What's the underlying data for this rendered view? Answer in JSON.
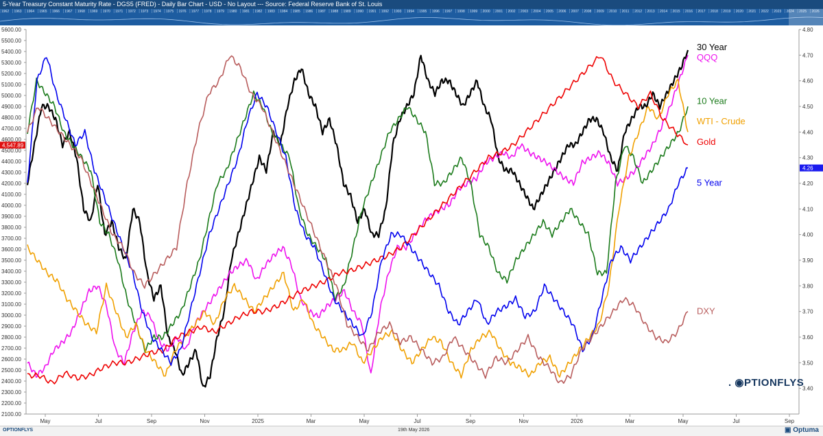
{
  "header": {
    "title": "5-Year Treasury Constant Maturity Rate - DGS5 (FRED) - Daily Bar Chart - USD - No Layout --- Source: Federal Reserve Bank of St. Louis"
  },
  "nav_years": [
    "1962",
    "1963",
    "1964",
    "1965",
    "1966",
    "1967",
    "1968",
    "1969",
    "1970",
    "1971",
    "1972",
    "1973",
    "1974",
    "1975",
    "1976",
    "1977",
    "1978",
    "1979",
    "1980",
    "1981",
    "1982",
    "1983",
    "1984",
    "1985",
    "1986",
    "1987",
    "1988",
    "1989",
    "1990",
    "1991",
    "1992",
    "1993",
    "1994",
    "1995",
    "1996",
    "1997",
    "1998",
    "1999",
    "2000",
    "2001",
    "2002",
    "2003",
    "2004",
    "2005",
    "2006",
    "2007",
    "2008",
    "2009",
    "2010",
    "2011",
    "2012",
    "2013",
    "2014",
    "2015",
    "2016",
    "2017",
    "2018",
    "2019",
    "2020",
    "2021",
    "2022",
    "2023",
    "2024",
    "2025",
    "2026"
  ],
  "footer": {
    "left_logo": "OPTIONFLYS",
    "date": "19th May 2026",
    "brand": "Optuma"
  },
  "watermark": "PTIONFLYS",
  "colors": {
    "thirty_year": "#000000",
    "qqq": "#ee11ee",
    "ten_year": "#1a7a1a",
    "wti": "#f0a000",
    "gold": "#ee0000",
    "five_year": "#0000ee",
    "dxy": "#b85c5c"
  },
  "chart_data": {
    "type": "line",
    "title": "5-Year Treasury Constant Maturity Rate - DGS5 (FRED) - Daily Bar Chart - USD",
    "left_axis": {
      "ylim": [
        2100,
        5600
      ],
      "ticks": [
        "5600.00",
        "5500.00",
        "5400.00",
        "5300.00",
        "5200.00",
        "5100.00",
        "5000.00",
        "4900.00",
        "4800.00",
        "4700.00",
        "4600.00",
        "4500.00",
        "4400.00",
        "4300.00",
        "4200.00",
        "4100.00",
        "4000.00",
        "3900.00",
        "3800.00",
        "3700.00",
        "3600.00",
        "3500.00",
        "3400.00",
        "3300.00",
        "3200.00",
        "3100.00",
        "3000.00",
        "2900.00",
        "2800.00",
        "2700.00",
        "2600.00",
        "2500.00",
        "2400.00",
        "2300.00",
        "2200.00",
        "2100.00"
      ],
      "marker": "4,547.89"
    },
    "right_axis": {
      "ylim": [
        3.3,
        4.8
      ],
      "ticks": [
        "4.80",
        "4.70",
        "4.60",
        "4.50",
        "4.40",
        "4.30",
        "4.20",
        "4.10",
        "4.00",
        "3.90",
        "3.80",
        "3.70",
        "3.60",
        "3.50",
        "3.40"
      ],
      "marker": "4.26"
    },
    "x_axis": {
      "ticks": [
        "May",
        "Jul",
        "Sep",
        "Nov",
        "2025",
        "Mar",
        "May",
        "Jul",
        "Sep",
        "Nov",
        "2026",
        "Mar",
        "May",
        "Jul",
        "Sep"
      ]
    },
    "grid": false,
    "legend_position": "right",
    "series": [
      {
        "name": "30 Year",
        "color_key": "thirty_year",
        "values": [
          4.2,
          4.35,
          4.5,
          4.5,
          4.45,
          4.35,
          4.4,
          4.3,
          4.1,
          4.05,
          4.2,
          4.0,
          4.05,
          3.95,
          3.9,
          4.1,
          4.05,
          3.85,
          3.75,
          3.8,
          3.6,
          3.55,
          3.45,
          3.5,
          3.55,
          3.4,
          3.45,
          3.6,
          3.7,
          3.9,
          4.0,
          4.1,
          4.2,
          4.3,
          4.25,
          4.4,
          4.35,
          4.5,
          4.6,
          4.65,
          4.55,
          4.5,
          4.4,
          4.45,
          4.35,
          4.2,
          4.15,
          4.05,
          4.1,
          4.0,
          4.0,
          4.1,
          4.35,
          4.45,
          4.5,
          4.55,
          4.7,
          4.6,
          4.55,
          4.6,
          4.6,
          4.55,
          4.5,
          4.55,
          4.6,
          4.5,
          4.45,
          4.3,
          4.25,
          4.25,
          4.2,
          4.15,
          4.1,
          4.15,
          4.2,
          4.25,
          4.3,
          4.35,
          4.35,
          4.4,
          4.45,
          4.45,
          4.4,
          4.3,
          4.25,
          4.4,
          4.45,
          4.5,
          4.5,
          4.55,
          4.5,
          4.55,
          4.6,
          4.65,
          4.72
        ]
      },
      {
        "name": "QQQ",
        "color_key": "qqq",
        "values": [
          3.5,
          3.45,
          3.48,
          3.55,
          3.58,
          3.62,
          3.7,
          3.78,
          3.8,
          3.72,
          3.55,
          3.5,
          3.62,
          3.7,
          3.68,
          3.58,
          3.55,
          3.6,
          3.55,
          3.65,
          3.7,
          3.75,
          3.8,
          3.85,
          3.88,
          3.9,
          3.82,
          3.88,
          3.92,
          3.95,
          3.88,
          3.75,
          3.7,
          3.68,
          3.72,
          3.75,
          3.78,
          3.7,
          3.65,
          3.45,
          3.7,
          3.85,
          3.95,
          3.95,
          4.0,
          4.05,
          4.08,
          4.1,
          4.12,
          4.18,
          4.2,
          4.22,
          4.28,
          4.3,
          4.32,
          4.3,
          4.35,
          4.32,
          4.3,
          4.28,
          4.25,
          4.22,
          4.2,
          4.28,
          4.3,
          4.32,
          4.28,
          4.2,
          4.22,
          4.25,
          4.3,
          4.35,
          4.42,
          4.5,
          4.6,
          4.7
        ]
      },
      {
        "name": "10 Year",
        "color_key": "ten_year",
        "values": [
          4.4,
          4.6,
          4.55,
          4.5,
          4.4,
          4.35,
          4.3,
          4.25,
          4.05,
          4.0,
          3.9,
          3.75,
          3.65,
          3.55,
          3.6,
          3.6,
          3.65,
          3.7,
          3.8,
          3.9,
          4.05,
          4.2,
          4.25,
          4.35,
          4.45,
          4.55,
          4.5,
          4.4,
          4.35,
          4.3,
          4.1,
          4.0,
          3.95,
          3.9,
          3.75,
          3.8,
          3.95,
          4.1,
          4.2,
          4.3,
          4.4,
          4.45,
          4.5,
          4.45,
          4.4,
          4.2,
          4.2,
          4.25,
          4.3,
          4.2,
          4.0,
          3.95,
          3.85,
          3.82,
          3.9,
          3.95,
          4.0,
          4.05,
          4.0,
          4.05,
          4.1,
          4.05,
          4.0,
          3.85,
          3.85,
          4.2,
          4.35,
          4.3,
          4.2,
          4.25,
          4.3,
          4.35,
          4.4,
          4.5
        ]
      },
      {
        "name": "WTI - Crude",
        "color_key": "wti",
        "values": [
          3.95,
          3.9,
          3.85,
          3.82,
          3.75,
          3.7,
          3.65,
          3.62,
          3.8,
          3.7,
          3.6,
          3.65,
          3.55,
          3.5,
          3.45,
          3.55,
          3.6,
          3.65,
          3.7,
          3.65,
          3.75,
          3.8,
          3.75,
          3.7,
          3.75,
          3.8,
          3.85,
          3.7,
          3.75,
          3.65,
          3.6,
          3.55,
          3.55,
          3.58,
          3.5,
          3.55,
          3.6,
          3.62,
          3.55,
          3.5,
          3.55,
          3.6,
          3.58,
          3.5,
          3.45,
          3.55,
          3.6,
          3.62,
          3.55,
          3.5,
          3.48,
          3.45,
          3.5,
          3.52,
          3.45,
          3.5,
          3.55,
          3.6,
          3.65,
          3.8,
          4.1,
          4.3,
          4.4,
          4.5,
          4.45,
          4.55,
          4.6,
          4.4
        ]
      },
      {
        "name": "Gold",
        "color_key": "gold",
        "values": [
          3.45,
          3.45,
          3.42,
          3.46,
          3.44,
          3.45,
          3.48,
          3.5,
          3.5,
          3.52,
          3.54,
          3.55,
          3.6,
          3.62,
          3.64,
          3.62,
          3.65,
          3.68,
          3.7,
          3.7,
          3.72,
          3.75,
          3.78,
          3.8,
          3.82,
          3.85,
          3.86,
          3.88,
          3.9,
          3.92,
          3.95,
          4.0,
          4.05,
          4.1,
          4.15,
          4.2,
          4.25,
          4.3,
          4.32,
          4.35,
          4.4,
          4.45,
          4.5,
          4.55,
          4.6,
          4.65,
          4.7,
          4.6,
          4.55,
          4.5,
          4.55,
          4.45,
          4.4,
          4.35
        ]
      },
      {
        "name": "5 Year",
        "color_key": "five_year",
        "values": [
          4.2,
          4.6,
          4.7,
          4.55,
          4.45,
          4.35,
          4.4,
          4.25,
          4.15,
          4.05,
          3.95,
          3.85,
          3.7,
          3.6,
          3.55,
          3.5,
          3.55,
          3.7,
          3.85,
          4.0,
          4.1,
          4.2,
          4.3,
          4.45,
          4.55,
          4.5,
          4.4,
          4.3,
          4.1,
          4.0,
          3.95,
          3.85,
          3.75,
          3.7,
          3.65,
          3.6,
          3.7,
          3.9,
          4.0,
          4.0,
          3.95,
          3.9,
          3.85,
          3.8,
          3.7,
          3.65,
          3.7,
          3.75,
          3.65,
          3.7,
          3.72,
          3.75,
          3.68,
          3.7,
          3.8,
          3.75,
          3.7,
          3.65,
          3.55,
          3.6,
          3.75,
          3.9,
          3.95,
          3.9,
          3.95,
          4.0,
          4.05,
          4.1,
          4.2,
          4.26
        ]
      },
      {
        "name": "DXY",
        "color_key": "dxy",
        "values": [
          4.4,
          4.5,
          4.45,
          4.4,
          4.35,
          4.3,
          4.2,
          4.1,
          4.0,
          3.95,
          3.85,
          3.8,
          3.85,
          3.9,
          3.95,
          4.2,
          4.4,
          4.55,
          4.6,
          4.7,
          4.65,
          4.55,
          4.5,
          4.4,
          4.3,
          4.2,
          4.1,
          4.0,
          3.9,
          3.8,
          3.65,
          3.6,
          3.55,
          3.62,
          3.65,
          3.58,
          3.6,
          3.55,
          3.5,
          3.52,
          3.6,
          3.55,
          3.5,
          3.45,
          3.52,
          3.5,
          3.55,
          3.6,
          3.52,
          3.48,
          3.42,
          3.45,
          3.55,
          3.6,
          3.65,
          3.7,
          3.75,
          3.72,
          3.65,
          3.6,
          3.58,
          3.62,
          3.7
        ]
      }
    ]
  }
}
